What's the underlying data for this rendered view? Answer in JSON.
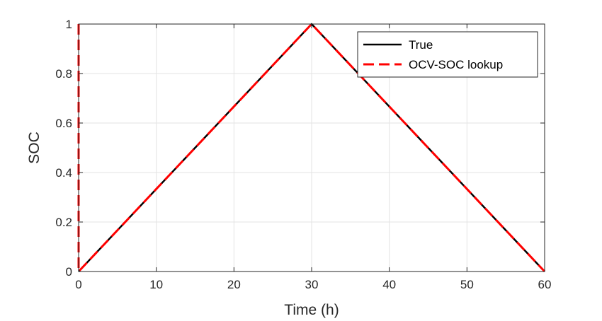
{
  "chart_data": {
    "type": "line",
    "xlabel": "Time (h)",
    "ylabel": "SOC",
    "xlim": [
      0,
      60
    ],
    "ylim": [
      0,
      1
    ],
    "xticks": [
      0,
      10,
      20,
      30,
      40,
      50,
      60
    ],
    "yticks": [
      0,
      0.2,
      0.4,
      0.6,
      0.8,
      1
    ],
    "xtick_labels": [
      "0",
      "10",
      "20",
      "30",
      "40",
      "50",
      "60"
    ],
    "ytick_labels": [
      "0",
      "0.2",
      "0.4",
      "0.6",
      "0.8",
      "1"
    ],
    "grid": true,
    "legend_position": "top-right",
    "series": [
      {
        "name": "True",
        "color": "#000000",
        "style": "solid",
        "x": [
          0,
          30,
          60
        ],
        "y": [
          0,
          1,
          0
        ]
      },
      {
        "name": "OCV-SOC lookup",
        "color": "#ff0000",
        "style": "dashed",
        "x": [
          0,
          0,
          0,
          30,
          60
        ],
        "y": [
          1,
          0,
          0,
          1,
          0
        ]
      }
    ]
  }
}
